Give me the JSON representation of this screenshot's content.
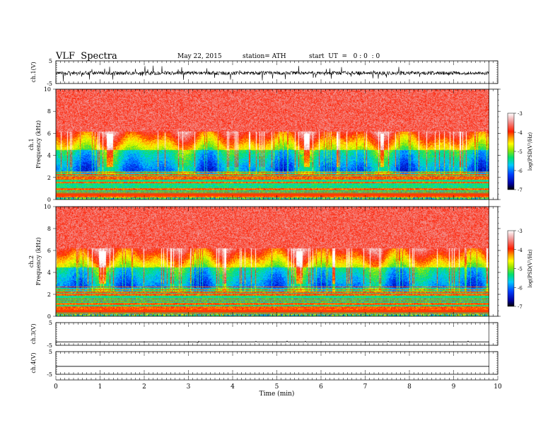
{
  "header": {
    "title": "VLF  Spectra",
    "date": "May 22, 2015",
    "station": "station= ATH",
    "start": "start  UT  =   0 : 0  : 0"
  },
  "chart_data": [
    {
      "type": "line",
      "panel": "ch1-waveform",
      "ylabel": "ch.1(V)",
      "ylim": [
        -5,
        5
      ],
      "yticks": [
        "5",
        "-5"
      ],
      "xlim": [
        0,
        10
      ],
      "data_end_min": 9.8,
      "baseline_v": -0.4
    },
    {
      "type": "heatmap",
      "panel": "ch1-spectrogram",
      "ylabel": "ch.1\nFrequency  (kHz)",
      "ylim": [
        0,
        10
      ],
      "yticks": [
        "0",
        "2",
        "4",
        "6",
        "8",
        "10"
      ],
      "xlim": [
        0,
        10
      ],
      "colorbar": {
        "label": "log(PSD(V²/Hz)",
        "range": [
          -7,
          -3
        ],
        "ticks": [
          "-3",
          "-4",
          "-5",
          "-6",
          "-7"
        ]
      }
    },
    {
      "type": "heatmap",
      "panel": "ch2-spectrogram",
      "ylabel": "ch.2\nFrequency  (kHz)",
      "ylim": [
        0,
        10
      ],
      "yticks": [
        "0",
        "2",
        "4",
        "6",
        "8",
        "10"
      ],
      "xlim": [
        0,
        10
      ],
      "colorbar": {
        "label": "log(PSD(V²/Hz)",
        "range": [
          -7,
          -3
        ],
        "ticks": [
          "-3",
          "-4",
          "-5",
          "-6",
          "-7"
        ]
      }
    },
    {
      "type": "line",
      "panel": "ch3-waveform",
      "ylabel": "ch.3(V)",
      "ylim": [
        -5,
        5
      ],
      "yticks": [
        "5",
        "-5"
      ],
      "baseline_v": -3.5
    },
    {
      "type": "line",
      "panel": "ch4-waveform",
      "ylabel": "ch.4(V)",
      "ylim": [
        -5,
        5
      ],
      "yticks": [
        "5",
        "-5"
      ],
      "baseline_v": -1.5
    }
  ],
  "xaxis": {
    "label": "Time  (min)",
    "ticks": [
      "0",
      "1",
      "2",
      "3",
      "4",
      "5",
      "6",
      "7",
      "8",
      "9",
      "10"
    ]
  },
  "colors": {
    "scale": [
      "#000000",
      "#0000a0",
      "#0040ff",
      "#00c8ff",
      "#00e070",
      "#9be600",
      "#ffff00",
      "#ff9a00",
      "#ff1e00",
      "#f0a0a0",
      "#ffffff"
    ]
  }
}
